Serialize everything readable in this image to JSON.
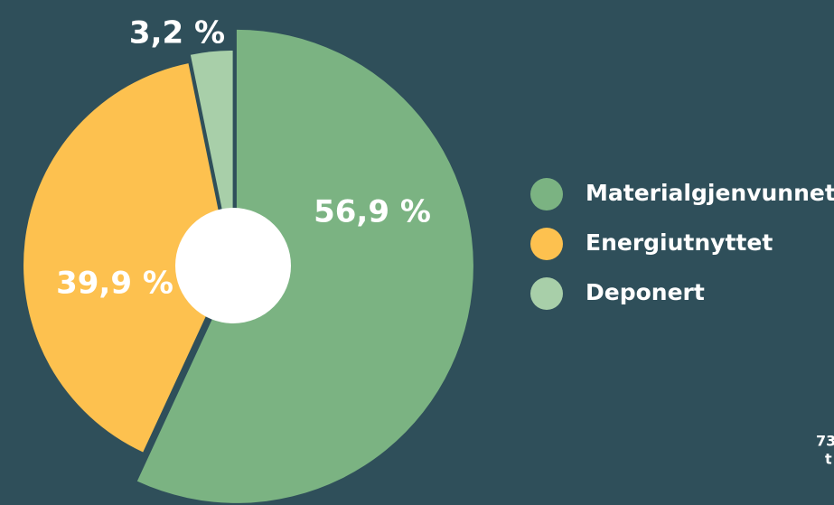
{
  "chart_data": {
    "type": "pie",
    "categories": [
      "Materialgjenvunnet",
      "Energiutnyttet",
      "Deponert"
    ],
    "values": [
      56.9,
      39.9,
      3.2
    ],
    "value_labels": [
      "56,9 %",
      "39,9 %",
      "3,2 %"
    ],
    "colors": [
      "#7bb382",
      "#fdc14f",
      "#a8cfa9"
    ],
    "legend": "right",
    "annotations": [
      "73",
      "t"
    ]
  }
}
